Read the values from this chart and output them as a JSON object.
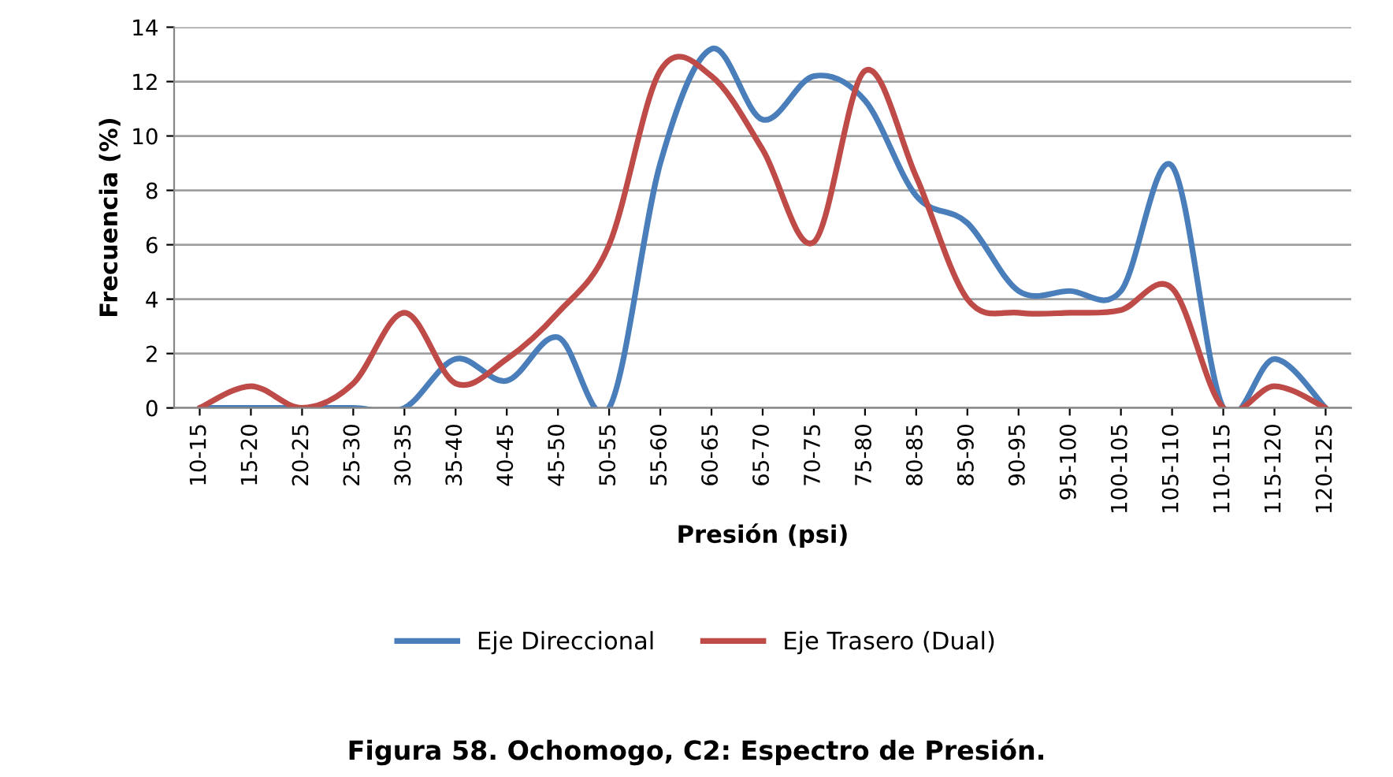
{
  "chart_data": {
    "type": "line",
    "title": "Figura 58. Ochomogo, C2: Espectro de Presión.",
    "xlabel": "Presión (psi)",
    "ylabel": "Frecuencia (%)",
    "categories": [
      "10-15",
      "15-20",
      "20-25",
      "25-30",
      "30-35",
      "35-40",
      "40-45",
      "45-50",
      "50-55",
      "55-60",
      "60-65",
      "65-70",
      "70-75",
      "75-80",
      "80-85",
      "85-90",
      "90-95",
      "95-100",
      "100-105",
      "105-110",
      "110-115",
      "115-120",
      "120-125"
    ],
    "series": [
      {
        "name": "Eje Direccional",
        "color": "#4a7ebb",
        "values": [
          0,
          0,
          0,
          0,
          0,
          1.8,
          1.0,
          2.6,
          0,
          9.0,
          13.2,
          10.6,
          12.2,
          11.3,
          7.8,
          6.8,
          4.3,
          4.3,
          4.3,
          8.9,
          0,
          1.8,
          0
        ]
      },
      {
        "name": "Eje Trasero (Dual)",
        "color": "#be4b48",
        "values": [
          0,
          0.8,
          0,
          0.9,
          3.5,
          0.9,
          1.8,
          3.5,
          6.0,
          12.4,
          12.2,
          9.5,
          6.1,
          12.4,
          8.5,
          4.0,
          3.5,
          3.5,
          3.6,
          4.4,
          0,
          0.8,
          0
        ]
      }
    ],
    "ylim": [
      0,
      14
    ],
    "yticks": [
      0,
      2,
      4,
      6,
      8,
      10,
      12,
      14
    ],
    "grid": "y",
    "legend": "bottom",
    "marker": "none",
    "line_style": "solid"
  }
}
